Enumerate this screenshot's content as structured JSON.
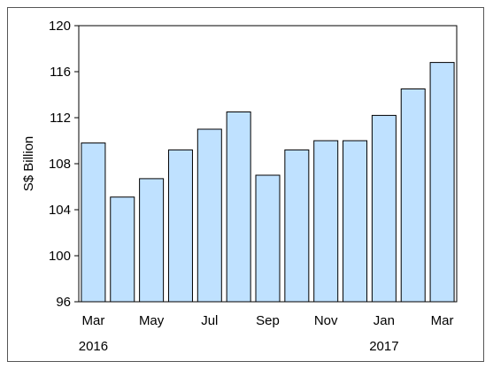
{
  "chart_data": {
    "type": "bar",
    "ylabel": "S$ Billion",
    "xlabel": "",
    "title": "",
    "ylim": [
      96,
      120
    ],
    "yticks": [
      96,
      100,
      104,
      108,
      112,
      116,
      120
    ],
    "grid": false,
    "legend": "none",
    "categories": [
      "Mar 2016",
      "Apr 2016",
      "May 2016",
      "Jun 2016",
      "Jul 2016",
      "Aug 2016",
      "Sep 2016",
      "Oct 2016",
      "Nov 2016",
      "Dec 2016",
      "Jan 2017",
      "Feb 2017",
      "Mar 2017"
    ],
    "tick_labels": [
      "Mar",
      "",
      "May",
      "",
      "Jul",
      "",
      "Sep",
      "",
      "Nov",
      "",
      "Jan",
      "",
      "Mar"
    ],
    "year_labels": [
      {
        "category_index": 0,
        "text": "2016"
      },
      {
        "category_index": 10,
        "text": "2017"
      }
    ],
    "values": [
      109.8,
      105.1,
      106.7,
      109.2,
      111.0,
      112.5,
      107.0,
      109.2,
      110.0,
      110.0,
      112.2,
      114.5,
      116.8
    ],
    "colors": {
      "bar_fill": "#bfe1ff",
      "bar_stroke": "#000000",
      "axis": "#000000",
      "frame": "#555555"
    }
  }
}
